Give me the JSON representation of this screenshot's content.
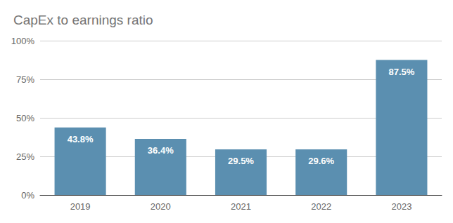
{
  "chart_data": {
    "type": "bar",
    "title": "CapEx to earnings ratio",
    "categories": [
      "2019",
      "2020",
      "2021",
      "2022",
      "2023"
    ],
    "values": [
      43.8,
      36.4,
      29.5,
      29.6,
      87.5
    ],
    "value_labels": [
      "43.8%",
      "36.4%",
      "29.5%",
      "29.6%",
      "87.5%"
    ],
    "color": "#5b8fb0",
    "ylim": [
      0,
      100
    ],
    "yticks": [
      {
        "value": 0,
        "label": "0%"
      },
      {
        "value": 25,
        "label": "25%"
      },
      {
        "value": 50,
        "label": "50%"
      },
      {
        "value": 75,
        "label": "75%"
      },
      {
        "value": 100,
        "label": "100%"
      }
    ],
    "grid": true,
    "data_labels": true
  }
}
